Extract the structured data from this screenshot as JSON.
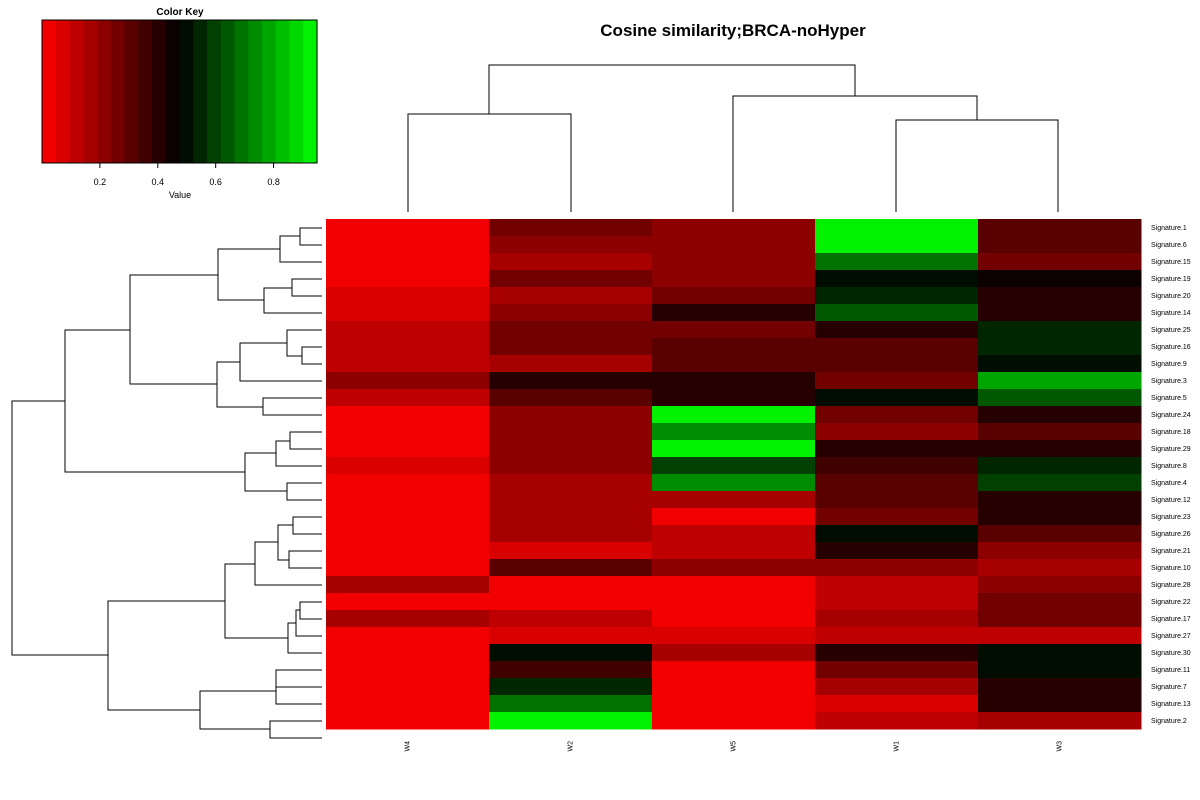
{
  "chart_data": {
    "type": "heatmap",
    "title": "Cosine similarity;BRCA-noHyper",
    "columns": [
      "W4",
      "W2",
      "W5",
      "W1",
      "W3"
    ],
    "rows": [
      "Signature.1",
      "Signature.6",
      "Signature.15",
      "Signature.19",
      "Signature.20",
      "Signature.14",
      "Signature.25",
      "Signature.16",
      "Signature.9",
      "Signature.3",
      "Signature.5",
      "Signature.24",
      "Signature.18",
      "Signature.29",
      "Signature.8",
      "Signature.4",
      "Signature.12",
      "Signature.23",
      "Signature.26",
      "Signature.21",
      "Signature.10",
      "Signature.28",
      "Signature.22",
      "Signature.17",
      "Signature.27",
      "Signature.30",
      "Signature.11",
      "Signature.7",
      "Signature.13",
      "Signature.2"
    ],
    "values": [
      [
        0.02,
        0.25,
        0.22,
        0.95,
        0.32
      ],
      [
        0.02,
        0.2,
        0.2,
        0.95,
        0.32
      ],
      [
        0.02,
        0.15,
        0.2,
        0.7,
        0.25
      ],
      [
        0.02,
        0.25,
        0.2,
        0.48,
        0.47
      ],
      [
        0.08,
        0.15,
        0.25,
        0.55,
        0.42
      ],
      [
        0.05,
        0.2,
        0.38,
        0.65,
        0.38
      ],
      [
        0.12,
        0.28,
        0.28,
        0.42,
        0.55
      ],
      [
        0.1,
        0.28,
        0.3,
        0.32,
        0.55
      ],
      [
        0.12,
        0.15,
        0.3,
        0.32,
        0.5
      ],
      [
        0.22,
        0.38,
        0.42,
        0.25,
        0.78
      ],
      [
        0.1,
        0.3,
        0.4,
        0.48,
        0.63
      ],
      [
        0.02,
        0.22,
        0.92,
        0.25,
        0.4
      ],
      [
        0.02,
        0.2,
        0.75,
        0.22,
        0.32
      ],
      [
        0.02,
        0.2,
        0.95,
        0.42,
        0.38
      ],
      [
        0.08,
        0.2,
        0.6,
        0.35,
        0.55
      ],
      [
        0.02,
        0.15,
        0.75,
        0.3,
        0.58
      ],
      [
        0.02,
        0.15,
        0.18,
        0.32,
        0.42
      ],
      [
        0.02,
        0.15,
        0.02,
        0.28,
        0.42
      ],
      [
        0.02,
        0.15,
        0.1,
        0.48,
        0.32
      ],
      [
        0.02,
        0.08,
        0.1,
        0.38,
        0.22
      ],
      [
        0.02,
        0.3,
        0.2,
        0.22,
        0.15
      ],
      [
        0.15,
        0.02,
        0.02,
        0.1,
        0.22
      ],
      [
        0.02,
        0.02,
        0.02,
        0.1,
        0.25
      ],
      [
        0.15,
        0.12,
        0.02,
        0.15,
        0.28
      ],
      [
        0.02,
        0.08,
        0.08,
        0.1,
        0.1
      ],
      [
        0.02,
        0.48,
        0.15,
        0.38,
        0.48
      ],
      [
        0.02,
        0.35,
        0.02,
        0.25,
        0.48
      ],
      [
        0.02,
        0.55,
        0.02,
        0.15,
        0.38
      ],
      [
        0.02,
        0.7,
        0.02,
        0.05,
        0.38
      ],
      [
        0.02,
        0.95,
        0.02,
        0.1,
        0.15
      ]
    ],
    "color_key": {
      "title": "Color Key",
      "xlabel": "Value",
      "range": [
        0.0,
        0.95
      ],
      "ticks": [
        "0.2",
        "0.4",
        "0.6",
        "0.8"
      ],
      "tick_values": [
        0.2,
        0.4,
        0.6,
        0.8
      ],
      "low_color": "#ff0000",
      "mid_color": "#000000",
      "high_color": "#00ff00",
      "n_bins": 20
    },
    "row_dendrogram_order": "leaf order top-to-bottom matches rows",
    "column_dendrogram_order": "leaf order left-to-right matches columns"
  }
}
